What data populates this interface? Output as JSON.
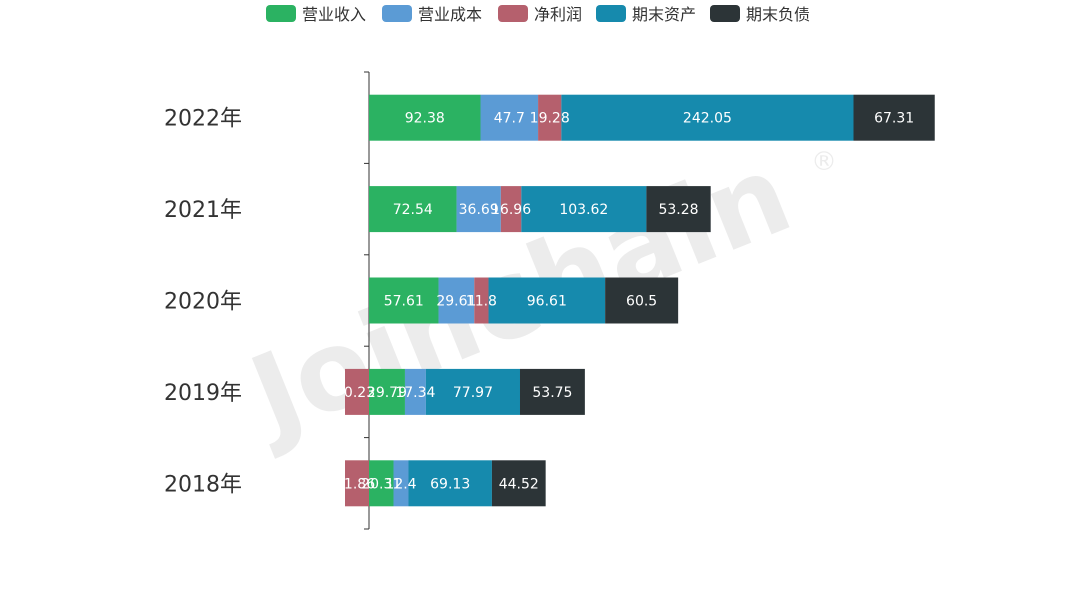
{
  "watermark": "Joinchain",
  "watermark_mark": "®",
  "chart_data": {
    "type": "bar",
    "orientation": "horizontal",
    "stacked": true,
    "categories": [
      "2022年",
      "2021年",
      "2020年",
      "2019年",
      "2018年"
    ],
    "series": [
      {
        "name": "营业收入",
        "color": "#2bb262",
        "values": [
          92.38,
          72.54,
          57.61,
          29.79,
          20.31
        ]
      },
      {
        "name": "营业成本",
        "color": "#5b9bd5",
        "values": [
          47.7,
          36.69,
          29.61,
          17.34,
          12.4
        ]
      },
      {
        "name": "净利润",
        "color": "#b5606d",
        "values": [
          19.28,
          16.96,
          11.8,
          -0.23,
          -1.86
        ]
      },
      {
        "name": "期末资产",
        "color": "#168aad",
        "values": [
          242.05,
          103.62,
          96.61,
          77.97,
          69.13
        ]
      },
      {
        "name": "期末负债",
        "color": "#2c3437",
        "values": [
          67.31,
          53.28,
          60.5,
          53.75,
          44.52
        ]
      }
    ],
    "legend_position": "top-center",
    "grid": false,
    "xlabel": "",
    "ylabel": ""
  }
}
